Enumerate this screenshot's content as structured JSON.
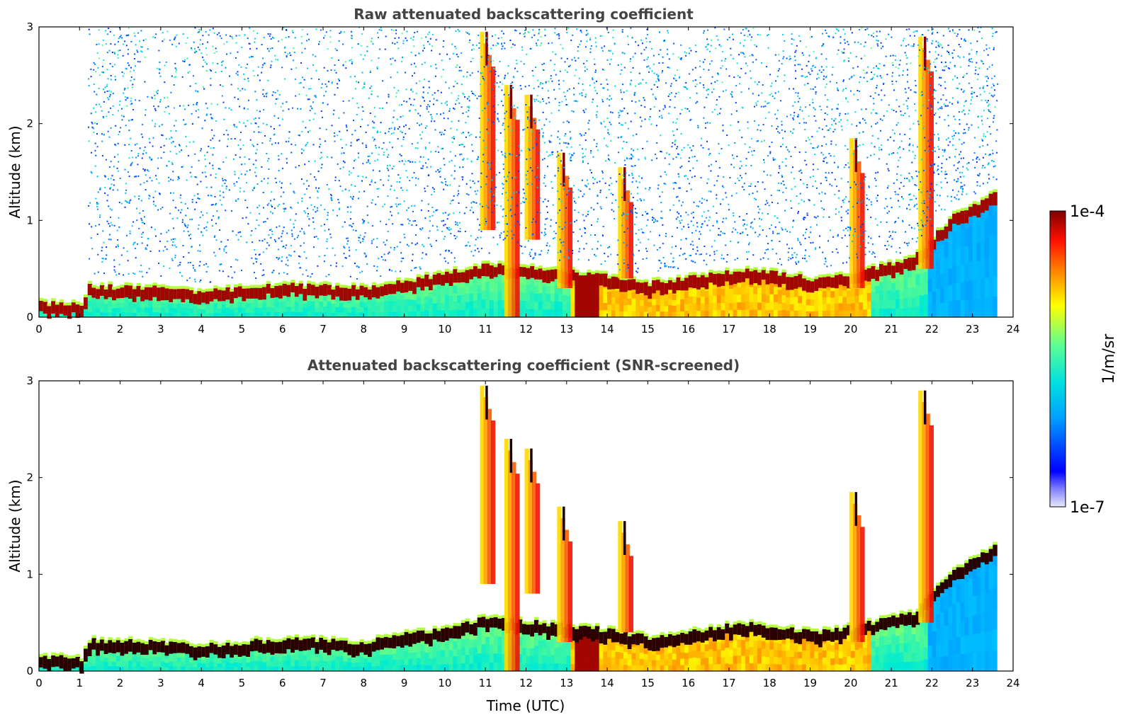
{
  "chart_data": [
    {
      "type": "heatmap",
      "title": "Raw attenuated backscattering coefficient",
      "xlabel": "",
      "ylabel": "Altitude (km)",
      "xlim": [
        0,
        24
      ],
      "ylim": [
        0,
        3
      ],
      "xticks": [
        "0",
        "1",
        "2",
        "3",
        "4",
        "5",
        "6",
        "7",
        "8",
        "9",
        "10",
        "11",
        "12",
        "13",
        "14",
        "15",
        "16",
        "17",
        "18",
        "19",
        "20",
        "21",
        "22",
        "23",
        "24"
      ],
      "yticks": [
        "0",
        "1",
        "2",
        "3"
      ],
      "data_end_time": 23.6,
      "boundary_layer_top_km": [
        {
          "t": 0,
          "z": 0.15
        },
        {
          "t": 1,
          "z": 0.12
        },
        {
          "t": 1.2,
          "z": 0.32
        },
        {
          "t": 3,
          "z": 0.3
        },
        {
          "t": 4,
          "z": 0.26
        },
        {
          "t": 6,
          "z": 0.33
        },
        {
          "t": 8,
          "z": 0.3
        },
        {
          "t": 10,
          "z": 0.45
        },
        {
          "t": 11,
          "z": 0.55
        },
        {
          "t": 13.5,
          "z": 0.45
        },
        {
          "t": 15,
          "z": 0.35
        },
        {
          "t": 17.5,
          "z": 0.5
        },
        {
          "t": 19,
          "z": 0.4
        },
        {
          "t": 20,
          "z": 0.45
        },
        {
          "t": 21.5,
          "z": 0.6
        },
        {
          "t": 22.5,
          "z": 1.05
        },
        {
          "t": 23.6,
          "z": 1.3
        }
      ],
      "cloud_features": [
        {
          "t": 11.0,
          "z_top": 2.95,
          "z_bottom": 0.9
        },
        {
          "t": 11.6,
          "z_top": 2.4,
          "z_bottom": 0.0
        },
        {
          "t": 12.1,
          "z_top": 2.3,
          "z_bottom": 0.8
        },
        {
          "t": 12.9,
          "z_top": 1.7,
          "z_bottom": 0.3
        },
        {
          "t": 14.4,
          "z_top": 1.55,
          "z_bottom": 0.4
        },
        {
          "t": 20.1,
          "z_top": 1.85,
          "z_bottom": 0.3
        },
        {
          "t": 21.8,
          "z_top": 2.9,
          "z_bottom": 0.5
        }
      ],
      "noise": true
    },
    {
      "type": "heatmap",
      "title": "Attenuated backscattering coefficient (SNR-screened)",
      "xlabel": "Time (UTC)",
      "ylabel": "Altitude (km)",
      "xlim": [
        0,
        24
      ],
      "ylim": [
        0,
        3
      ],
      "xticks": [
        "0",
        "1",
        "2",
        "3",
        "4",
        "5",
        "6",
        "7",
        "8",
        "9",
        "10",
        "11",
        "12",
        "13",
        "14",
        "15",
        "16",
        "17",
        "18",
        "19",
        "20",
        "21",
        "22",
        "23",
        "24"
      ],
      "yticks": [
        "0",
        "1",
        "2",
        "3"
      ],
      "data_end_time": 23.6,
      "noise": false,
      "same_field_as": 0
    }
  ],
  "colorbar": {
    "label": "1/m/sr",
    "max_label": "1e-4",
    "min_label": "1e-7",
    "scale": "log",
    "colormap": "jet"
  }
}
